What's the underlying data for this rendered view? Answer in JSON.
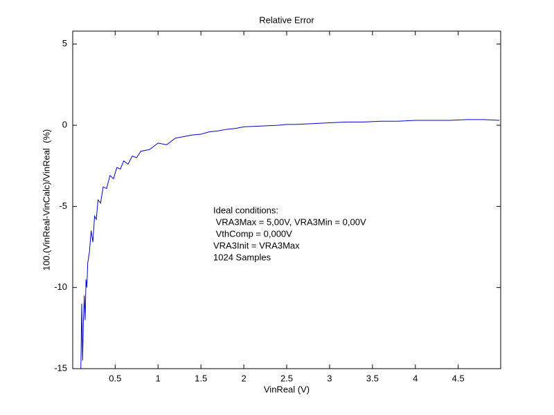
{
  "chart_data": {
    "type": "line",
    "title": "Relative Error",
    "x_label": "VinReal (V)",
    "y_label": "100.(VinReal-VinCalc)/VinReal  (%)",
    "annotation": [
      "Ideal conditions:",
      " VRA3Max = 5,00V, VRA3Min = 0,00V",
      " VthComp = 0,000V",
      "VRA3Init = VRA3Max",
      "1024 Samples"
    ],
    "x": [
      0.1,
      0.11,
      0.12,
      0.13,
      0.14,
      0.15,
      0.16,
      0.17,
      0.18,
      0.2,
      0.22,
      0.24,
      0.26,
      0.28,
      0.3,
      0.33,
      0.36,
      0.4,
      0.44,
      0.48,
      0.52,
      0.56,
      0.6,
      0.65,
      0.7,
      0.75,
      0.8,
      0.9,
      1.0,
      1.1,
      1.2,
      1.3,
      1.4,
      1.5,
      1.6,
      1.7,
      1.8,
      1.9,
      2.0,
      2.2,
      2.4,
      2.5,
      2.6,
      2.8,
      3.0,
      3.2,
      3.4,
      3.6,
      3.8,
      4.0,
      4.2,
      4.4,
      4.6,
      4.8,
      4.98
    ],
    "series": [
      {
        "color": "#0000cc",
        "values": [
          -15,
          -11,
          -14.5,
          -12,
          -10.5,
          -12,
          -9.5,
          -10,
          -8.5,
          -7.8,
          -6.5,
          -7.2,
          -5.6,
          -5.8,
          -4.6,
          -4.8,
          -3.8,
          -3.9,
          -3.1,
          -3.3,
          -2.6,
          -2.7,
          -2.2,
          -2.4,
          -1.9,
          -2.0,
          -1.6,
          -1.5,
          -1.1,
          -1.2,
          -0.8,
          -0.7,
          -0.6,
          -0.55,
          -0.4,
          -0.35,
          -0.25,
          -0.2,
          -0.1,
          -0.05,
          0.0,
          0.05,
          0.05,
          0.1,
          0.15,
          0.2,
          0.2,
          0.25,
          0.25,
          0.3,
          0.3,
          0.3,
          0.35,
          0.35,
          0.3
        ]
      }
    ],
    "xlim": [
      0.005,
      4.995
    ],
    "ylim": [
      -15,
      5.8
    ],
    "xticks": [
      0.5,
      1,
      1.5,
      2,
      2.5,
      3,
      3.5,
      4,
      4.5
    ],
    "yticks": [
      -15,
      -10,
      -5,
      0,
      5
    ]
  }
}
